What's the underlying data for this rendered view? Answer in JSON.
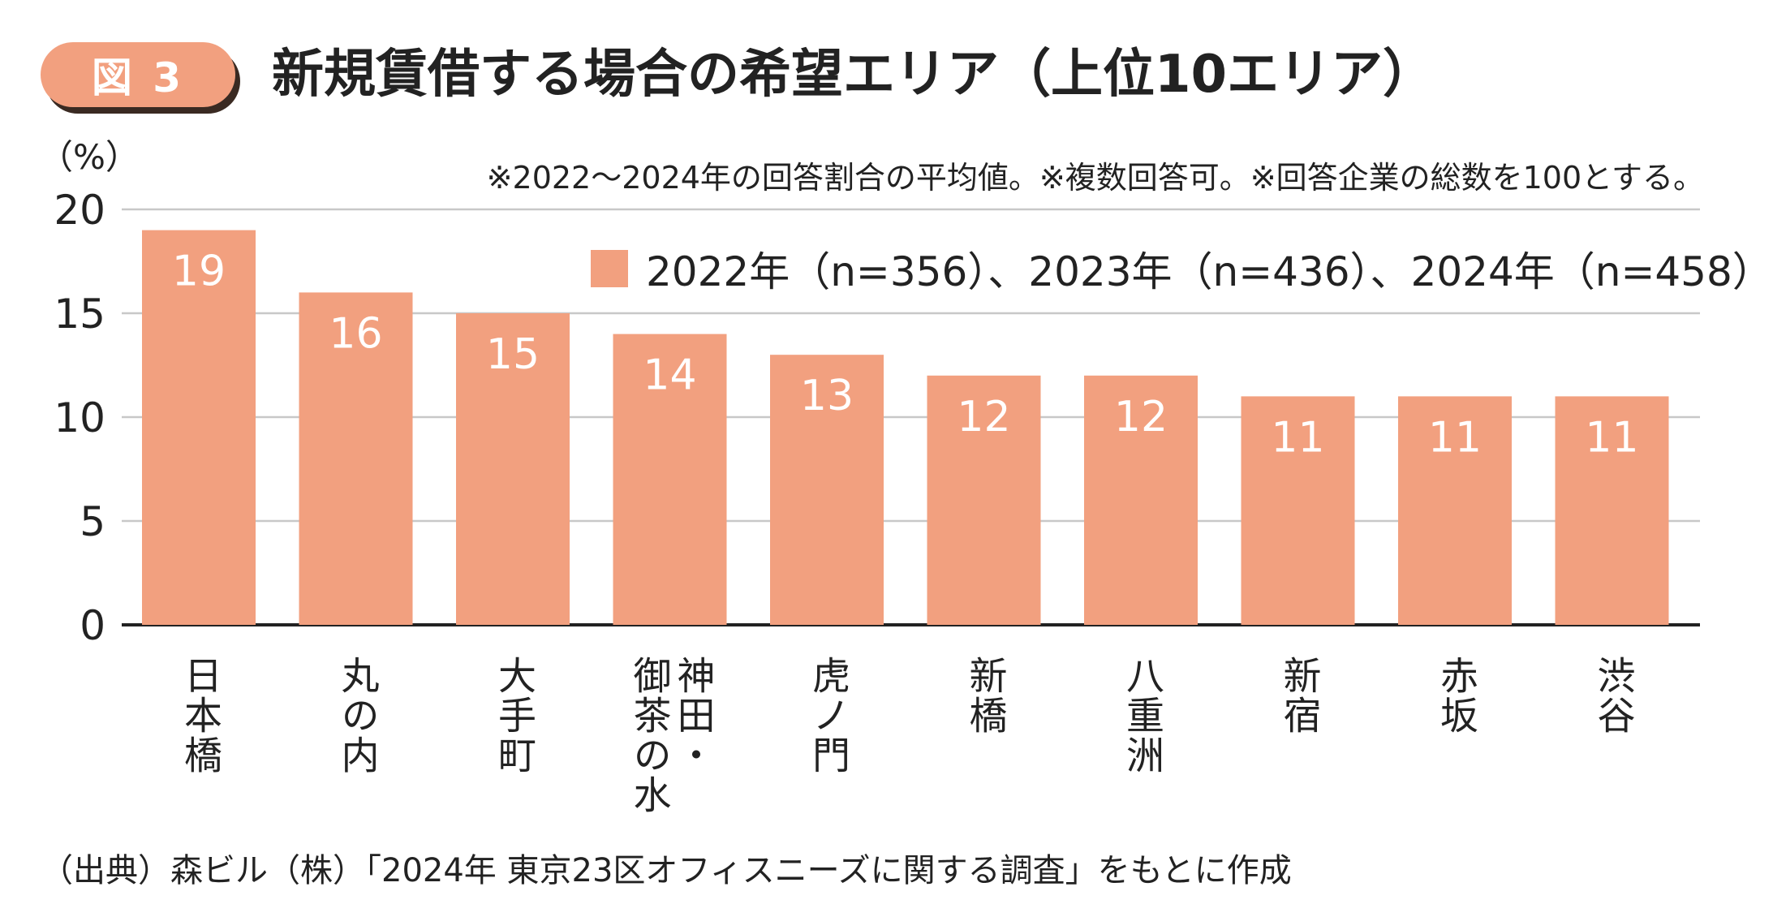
{
  "badge": "図 3",
  "title": "新規賃借する場合の希望エリア（上位10エリア）",
  "note": "※2022～2024年の回答割合の平均値。※複数回答可。※回答企業の総数を100とする。",
  "legend": "2022年（n=356）、2023年（n=436）、2024年（n=458）",
  "source": "（出典）森ビル（株）「2024年 東京23区オフィスニーズに関する調査」をもとに作成",
  "colors": {
    "bar": "#f2a07f",
    "grid": "#c8c8c8",
    "axis": "#222222",
    "badge_shadow": "#3a2a22"
  },
  "chart_data": {
    "type": "bar",
    "title": "新規賃借する場合の希望エリア（上位10エリア）",
    "unit": "（%）",
    "ylim": [
      0,
      20
    ],
    "yticks": [
      0,
      5,
      10,
      15,
      20
    ],
    "grid": true,
    "categories": [
      "日本橋",
      "丸の内",
      "大手町",
      "神田・御茶の水",
      "虎ノ門",
      "新橋",
      "八重洲",
      "新宿",
      "赤坂",
      "渋谷"
    ],
    "category_lines": [
      [
        "日本橋"
      ],
      [
        "丸の内"
      ],
      [
        "大手町"
      ],
      [
        "神田・",
        "御茶の水"
      ],
      [
        "虎ノ門"
      ],
      [
        "新橋"
      ],
      [
        "八重洲"
      ],
      [
        "新宿"
      ],
      [
        "赤坂"
      ],
      [
        "渋谷"
      ]
    ],
    "values": [
      19,
      16,
      15,
      14,
      13,
      12,
      12,
      11,
      11,
      11
    ],
    "series_name": "2022年（n=356）、2023年（n=436）、2024年（n=458）"
  }
}
